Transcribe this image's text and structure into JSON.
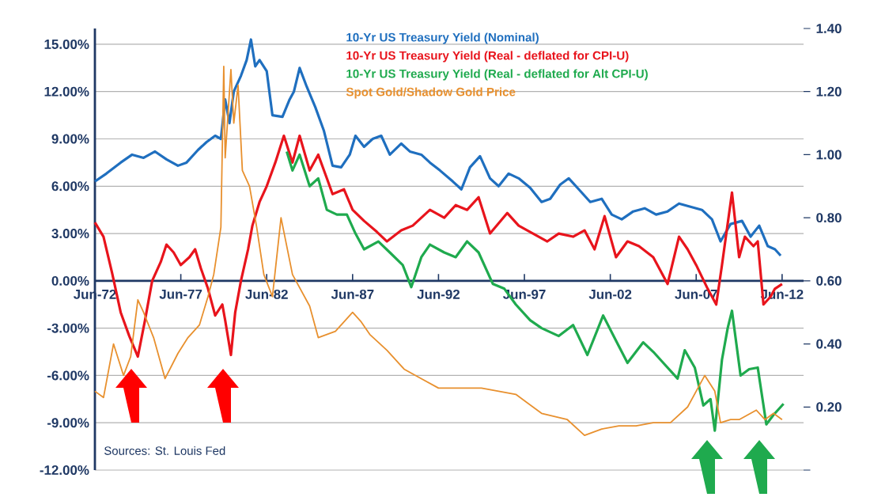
{
  "chart_data": {
    "type": "line",
    "xlim": [
      "1972-06",
      "2013-09"
    ],
    "ylim": [
      -12,
      16
    ],
    "y2lim": [
      0,
      1.4
    ],
    "xticks": [
      {
        "value": "1972-06",
        "label": "Jun-72"
      },
      {
        "value": "1977-06",
        "label": "Jun-77"
      },
      {
        "value": "1982-06",
        "label": "Jun-82"
      },
      {
        "value": "1987-06",
        "label": "Jun-87"
      },
      {
        "value": "1992-06",
        "label": "Jun-92"
      },
      {
        "value": "1997-06",
        "label": "Jun-97"
      },
      {
        "value": "2002-06",
        "label": "Jun-02"
      },
      {
        "value": "2007-06",
        "label": "Jun-07"
      },
      {
        "value": "2012-06",
        "label": "Jun-12"
      }
    ],
    "yticks": [
      {
        "value": -12,
        "label": "-12.00%"
      },
      {
        "value": -9,
        "label": "-9.00%"
      },
      {
        "value": -6,
        "label": "-6.00%"
      },
      {
        "value": -3,
        "label": "-3.00%"
      },
      {
        "value": 0,
        "label": "0.00%"
      },
      {
        "value": 3,
        "label": "3.00%"
      },
      {
        "value": 6,
        "label": "6.00%"
      },
      {
        "value": 9,
        "label": "9.00%"
      },
      {
        "value": 12,
        "label": "12.00%"
      },
      {
        "value": 15,
        "label": "15.00%"
      }
    ],
    "y2ticks": [
      {
        "value": 0,
        "label": null
      },
      {
        "value": 0.2,
        "label": "0.20"
      },
      {
        "value": 0.4,
        "label": "0.40"
      },
      {
        "value": 0.6,
        "label": "0.60"
      },
      {
        "value": 0.8,
        "label": "0.80"
      },
      {
        "value": 1.0,
        "label": "1.00"
      },
      {
        "value": 1.2,
        "label": "1.20"
      },
      {
        "value": 1.4,
        "label": "1.40"
      }
    ],
    "grid": "y",
    "legend": "top right",
    "marker": "none",
    "annotations": [
      "Sources: St. Louis Fed"
    ],
    "series": [
      {
        "name": "10-Yr US Treasury Yield (Nominal)",
        "color": "#1f6fbf",
        "x": [
          "1972-06",
          "1973-02",
          "1973-12",
          "1974-08",
          "1975-04",
          "1975-12",
          "1976-08",
          "1977-04",
          "1977-10",
          "1978-06",
          "1978-12",
          "1979-06",
          "1979-10",
          "1980-01",
          "1980-04",
          "1980-07",
          "1980-12",
          "1981-04",
          "1981-07",
          "1981-10",
          "1982-01",
          "1982-06",
          "1982-10",
          "1983-05",
          "1983-10",
          "1984-01",
          "1984-05",
          "1984-10",
          "1985-04",
          "1985-10",
          "1986-04",
          "1986-10",
          "1987-04",
          "1987-08",
          "1988-02",
          "1988-08",
          "1989-02",
          "1989-08",
          "1990-04",
          "1990-10",
          "1991-06",
          "1991-12",
          "1992-07",
          "1993-04",
          "1993-10",
          "1994-04",
          "1994-11",
          "1995-06",
          "1995-12",
          "1996-07",
          "1997-02",
          "1997-10",
          "1998-06",
          "1998-12",
          "1999-07",
          "2000-01",
          "2000-08",
          "2001-04",
          "2001-12",
          "2002-07",
          "2003-02",
          "2003-10",
          "2004-06",
          "2005-02",
          "2005-10",
          "2006-06",
          "2007-02",
          "2007-10",
          "2008-05",
          "2008-11",
          "2009-06",
          "2010-02",
          "2010-08",
          "2011-02",
          "2011-08",
          "2012-01",
          "2012-05"
        ],
        "values": [
          6.3,
          6.8,
          7.5,
          8.0,
          7.8,
          8.2,
          7.7,
          7.3,
          7.5,
          8.3,
          8.8,
          9.2,
          9.0,
          11.5,
          10.0,
          12.0,
          13.0,
          14.0,
          15.3,
          13.6,
          14.0,
          13.3,
          10.5,
          10.4,
          11.5,
          12.0,
          13.5,
          12.3,
          11.0,
          9.5,
          7.3,
          7.2,
          8.0,
          9.2,
          8.5,
          9.0,
          9.2,
          8.0,
          8.7,
          8.2,
          8.0,
          7.5,
          7.0,
          6.3,
          5.8,
          7.2,
          7.9,
          6.5,
          6.0,
          6.8,
          6.5,
          5.9,
          5.0,
          5.2,
          6.1,
          6.5,
          5.8,
          5.0,
          5.2,
          4.2,
          3.9,
          4.4,
          4.6,
          4.2,
          4.4,
          4.9,
          4.7,
          4.5,
          3.9,
          2.5,
          3.6,
          3.8,
          2.8,
          3.5,
          2.2,
          2.0,
          1.6
        ]
      },
      {
        "name": "10-Yr US Treasury Yield (Real - deflated for CPI-U)",
        "color": "#e8141c",
        "x": [
          "1972-06",
          "1972-12",
          "1973-06",
          "1973-12",
          "1974-06",
          "1974-12",
          "1975-05",
          "1975-10",
          "1976-04",
          "1976-08",
          "1977-01",
          "1977-06",
          "1977-12",
          "1978-04",
          "1978-08",
          "1979-01",
          "1979-06",
          "1979-11",
          "1980-01",
          "1980-05",
          "1980-08",
          "1980-12",
          "1981-05",
          "1981-08",
          "1982-01",
          "1982-06",
          "1982-12",
          "1983-06",
          "1983-12",
          "1984-05",
          "1984-12",
          "1985-06",
          "1985-12",
          "1986-04",
          "1986-12",
          "1987-06",
          "1988-02",
          "1988-11",
          "1989-06",
          "1990-04",
          "1990-12",
          "1991-12",
          "1992-10",
          "1993-06",
          "1994-02",
          "1994-10",
          "1995-06",
          "1996-06",
          "1997-02",
          "1997-12",
          "1998-10",
          "1999-06",
          "2000-04",
          "2000-12",
          "2001-07",
          "2002-02",
          "2002-10",
          "2003-06",
          "2004-02",
          "2004-12",
          "2005-10",
          "2006-06",
          "2006-12",
          "2007-06",
          "2008-02",
          "2008-08",
          "2008-12",
          "2009-07",
          "2009-12",
          "2010-04",
          "2010-10",
          "2011-01",
          "2011-05",
          "2011-10",
          "2012-01",
          "2012-06"
        ],
        "values": [
          3.7,
          2.8,
          0.5,
          -2,
          -3.5,
          -4.8,
          -2.5,
          0,
          1.2,
          2.3,
          1.8,
          1.0,
          1.5,
          2.0,
          0.8,
          -0.5,
          -2.2,
          -1.5,
          -2.5,
          -4.7,
          -2.0,
          0,
          2.0,
          3.5,
          5.0,
          6.0,
          7.5,
          9.2,
          7.5,
          9.2,
          7.0,
          8.0,
          6.5,
          5.5,
          5.8,
          4.5,
          3.8,
          3.1,
          2.5,
          3.2,
          3.5,
          4.5,
          4.0,
          4.8,
          4.5,
          5.3,
          3.0,
          4.3,
          3.5,
          3.0,
          2.5,
          3.0,
          2.8,
          3.2,
          2.0,
          4.1,
          1.5,
          2.5,
          2.2,
          1.5,
          -0.2,
          2.8,
          2.0,
          1.0,
          -0.5,
          -1.5,
          1.0,
          5.6,
          1.5,
          2.8,
          2.2,
          2.5,
          -1.5,
          -1.0,
          -0.5,
          -0.2
        ]
      },
      {
        "name": "10-Yr US Treasury Yield (Real - deflated for Alt CPI-U)",
        "color": "#1faa4e",
        "x": [
          "1983-08",
          "1983-12",
          "1984-05",
          "1984-12",
          "1985-06",
          "1985-12",
          "1986-07",
          "1987-02",
          "1987-08",
          "1988-02",
          "1988-12",
          "1989-08",
          "1990-05",
          "1990-11",
          "1991-06",
          "1991-12",
          "1992-10",
          "1993-06",
          "1994-02",
          "1994-10",
          "1995-08",
          "1996-04",
          "1996-12",
          "1997-10",
          "1998-06",
          "1999-06",
          "2000-04",
          "2001-02",
          "2002-01",
          "2002-10",
          "2003-06",
          "2004-05",
          "2004-12",
          "2005-07",
          "2006-05",
          "2006-10",
          "2007-05",
          "2007-11",
          "2008-04",
          "2008-07",
          "2008-12",
          "2009-04",
          "2009-07",
          "2010-01",
          "2010-07",
          "2011-01",
          "2011-07",
          "2011-12",
          "2012-07"
        ],
        "values": [
          8.2,
          7,
          8,
          6,
          6.5,
          4.5,
          4.2,
          4.2,
          3,
          2,
          2.5,
          1.8,
          1,
          -0.4,
          1.5,
          2.3,
          1.8,
          1.5,
          2.5,
          1.8,
          -0.2,
          -0.5,
          -1.5,
          -2.5,
          -3,
          -3.5,
          -2.8,
          -4.7,
          -2.2,
          -3.8,
          -5.2,
          -3.9,
          -4.5,
          -5.2,
          -6.2,
          -4.4,
          -5.5,
          -7.9,
          -7.5,
          -9.5,
          -5,
          -3,
          -1.9,
          -6,
          -5.6,
          -5.5,
          -9.1,
          -8.5,
          -7.8
        ]
      },
      {
        "name": "Spot Gold/Shadow Gold Price",
        "color": "#e8902e",
        "axis": "y2",
        "x": [
          "1972-06",
          "1972-12",
          "1973-07",
          "1974-02",
          "1974-07",
          "1974-12",
          "1975-04",
          "1975-11",
          "1976-07",
          "1977-04",
          "1977-11",
          "1978-07",
          "1979-01",
          "1979-05",
          "1979-10",
          "1979-12",
          "1980-01",
          "1980-05",
          "1980-07",
          "1980-10",
          "1981-01",
          "1981-06",
          "1981-11",
          "1982-04",
          "1982-10",
          "1983-04",
          "1983-12",
          "1984-12",
          "1985-06",
          "1986-06",
          "1987-06",
          "1987-12",
          "1988-06",
          "1989-06",
          "1990-06",
          "1991-06",
          "1992-06",
          "1993-06",
          "1994-12",
          "1996-12",
          "1998-06",
          "1999-12",
          "2000-12",
          "2001-12",
          "2002-12",
          "2003-12",
          "2004-12",
          "2005-12",
          "2006-12",
          "2007-12",
          "2008-07",
          "2008-11",
          "2009-06",
          "2009-12",
          "2010-12",
          "2011-06",
          "2011-12",
          "2012-06"
        ],
        "values": [
          0.25,
          0.23,
          0.4,
          0.3,
          0.36,
          0.54,
          0.5,
          0.42,
          0.29,
          0.37,
          0.42,
          0.46,
          0.55,
          0.62,
          0.77,
          1.28,
          0.99,
          1.27,
          1.1,
          1.22,
          0.95,
          0.9,
          0.77,
          0.62,
          0.55,
          0.8,
          0.62,
          0.52,
          0.42,
          0.44,
          0.5,
          0.47,
          0.43,
          0.38,
          0.32,
          0.29,
          0.26,
          0.26,
          0.26,
          0.24,
          0.18,
          0.16,
          0.11,
          0.13,
          0.14,
          0.14,
          0.15,
          0.15,
          0.2,
          0.3,
          0.25,
          0.15,
          0.16,
          0.16,
          0.19,
          0.16,
          0.18,
          0.16
        ]
      }
    ]
  }
}
